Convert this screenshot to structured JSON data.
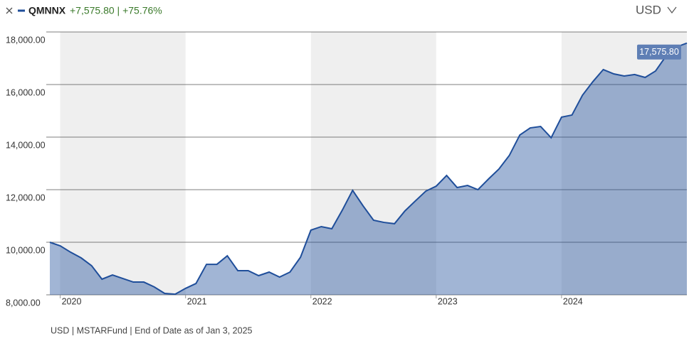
{
  "chart_data": {
    "type": "area",
    "ticker": "QMNNX",
    "change_text": "+7,575.80 | +75.76%",
    "currency": "USD",
    "footer": "USD | MSTARFund | End of Date as of Jan 3, 2025",
    "xlim": [
      2019.917,
      2025.0
    ],
    "xticks": [
      2020,
      2021,
      2022,
      2023,
      2024
    ],
    "ylim": [
      8000,
      18000
    ],
    "yticks": [
      {
        "value": 8000,
        "label": "8,000.00"
      },
      {
        "value": 10000,
        "label": "10,000.00"
      },
      {
        "value": 12000,
        "label": "12,000.00"
      },
      {
        "value": 14000,
        "label": "14,000.00"
      },
      {
        "value": 16000,
        "label": "16,000.00"
      },
      {
        "value": 18000,
        "label": "18,000.00"
      }
    ],
    "grid": true,
    "x": [
      2019.917,
      2020.0,
      2020.083,
      2020.167,
      2020.25,
      2020.333,
      2020.417,
      2020.5,
      2020.583,
      2020.667,
      2020.75,
      2020.833,
      2020.917,
      2021.0,
      2021.083,
      2021.167,
      2021.25,
      2021.333,
      2021.417,
      2021.5,
      2021.583,
      2021.667,
      2021.75,
      2021.833,
      2021.917,
      2022.0,
      2022.083,
      2022.167,
      2022.25,
      2022.333,
      2022.417,
      2022.5,
      2022.583,
      2022.667,
      2022.75,
      2022.833,
      2022.917,
      2023.0,
      2023.083,
      2023.167,
      2023.25,
      2023.333,
      2023.417,
      2023.5,
      2023.583,
      2023.667,
      2023.75,
      2023.833,
      2023.917,
      2024.0,
      2024.083,
      2024.167,
      2024.25,
      2024.333,
      2024.417,
      2024.5,
      2024.583,
      2024.667,
      2024.75,
      2024.833,
      2024.917,
      2025.0
    ],
    "series": [
      {
        "name": "QMNNX",
        "color": "#1f4e9a",
        "values": [
          10000,
          9865,
          9620,
          9405,
          9110,
          8595,
          8755,
          8620,
          8485,
          8485,
          8300,
          8055,
          8025,
          8245,
          8430,
          9160,
          9160,
          9485,
          8920,
          8920,
          8730,
          8865,
          8675,
          8865,
          9430,
          10460,
          10595,
          10515,
          11215,
          11975,
          11380,
          10840,
          10755,
          10705,
          11190,
          11570,
          11945,
          12135,
          12540,
          12080,
          12160,
          12000,
          12405,
          12785,
          13300,
          14080,
          14350,
          14405,
          13975,
          14760,
          14840,
          15595,
          16110,
          16570,
          16405,
          16325,
          16380,
          16270,
          16515,
          17080,
          17430,
          17575.8
        ],
        "value_labels": [
          null,
          null,
          null,
          null,
          null,
          null,
          null,
          null,
          null,
          null,
          null,
          null,
          null,
          null,
          null,
          null,
          null,
          null,
          null,
          null,
          null,
          null,
          null,
          null,
          null,
          null,
          null,
          null,
          null,
          null,
          null,
          null,
          null,
          null,
          null,
          null,
          null,
          null,
          null,
          null,
          null,
          null,
          null,
          null,
          null,
          null,
          null,
          null,
          null,
          null,
          null,
          null,
          null,
          null,
          null,
          null,
          null,
          null,
          null,
          null,
          null,
          "17,575.80"
        ]
      }
    ]
  }
}
